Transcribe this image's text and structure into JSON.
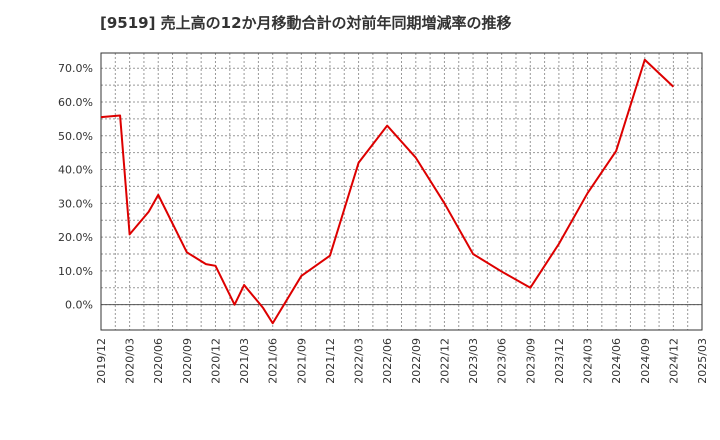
{
  "chart_data": {
    "type": "line",
    "title": "[9519]  売上高の12か月移動合計の対前年同期増減率の推移",
    "xlabel": "",
    "ylabel": "",
    "ylim": [
      -7.5,
      74.5
    ],
    "y_ticks": [
      0,
      10,
      20,
      30,
      40,
      50,
      60,
      70
    ],
    "y_tick_labels": [
      "0.0%",
      "10.0%",
      "20.0%",
      "30.0%",
      "40.0%",
      "50.0%",
      "60.0%",
      "70.0%"
    ],
    "x_tick_labels": [
      "2019/12",
      "2020/03",
      "2020/06",
      "2020/09",
      "2020/12",
      "2021/03",
      "2021/06",
      "2021/09",
      "2021/12",
      "2022/03",
      "2022/06",
      "2022/09",
      "2022/12",
      "2023/03",
      "2023/06",
      "2023/09",
      "2023/12",
      "2024/03",
      "2024/06",
      "2024/09",
      "2024/12",
      "2025/03"
    ],
    "grid": true,
    "series": [
      {
        "name": "対前年同期増減率",
        "color": "#dd0000",
        "x": [
          0,
          2,
          3,
          5,
          6,
          9,
          11,
          12,
          14,
          15,
          17,
          18,
          21,
          24,
          27,
          30,
          33,
          36,
          39,
          42,
          45,
          48,
          51,
          54,
          57,
          60
        ],
        "values": [
          55.5,
          56.0,
          20.8,
          27.5,
          32.5,
          15.5,
          12.0,
          11.5,
          0.0,
          5.8,
          -1.0,
          -5.5,
          8.5,
          14.5,
          42.0,
          53.0,
          43.5,
          30.0,
          15.0,
          9.8,
          5.0,
          18.0,
          33.0,
          45.5,
          72.5,
          64.5
        ]
      }
    ]
  }
}
